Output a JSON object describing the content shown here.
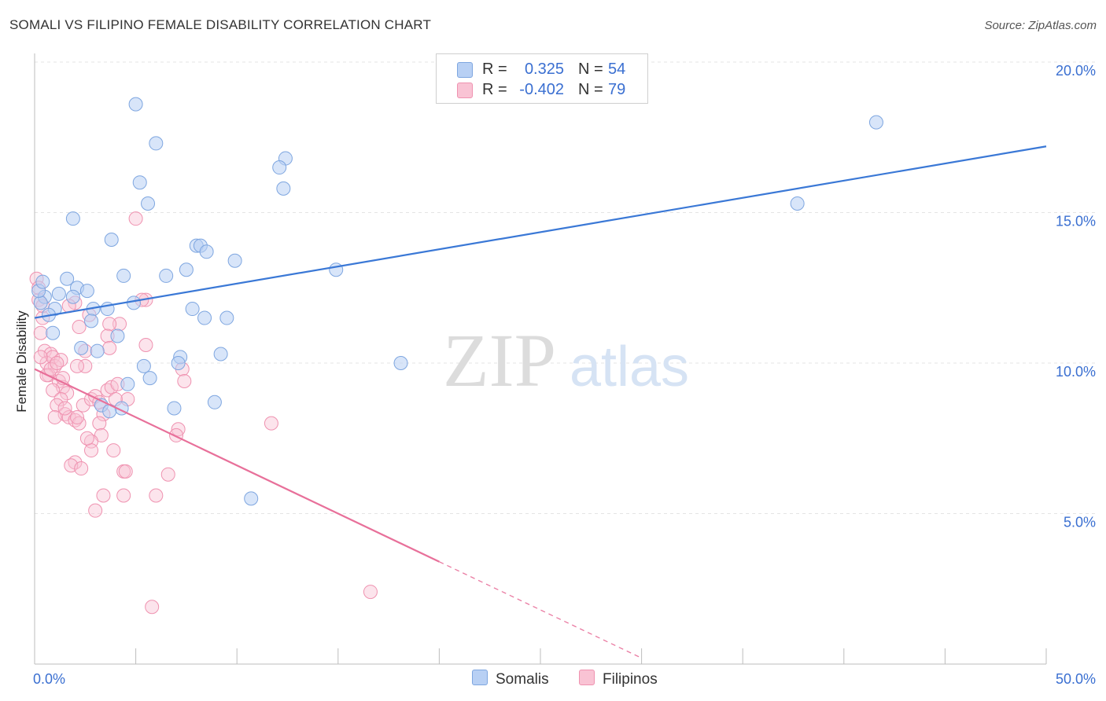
{
  "title": "SOMALI VS FILIPINO FEMALE DISABILITY CORRELATION CHART",
  "source": "Source: ZipAtlas.com",
  "watermark": {
    "zip": "ZIP",
    "atlas": "atlas"
  },
  "legend": {
    "r_label": "R =",
    "n_label": "N =",
    "rows": [
      {
        "r": "0.325",
        "n": "54",
        "fill": "#b8d0f4",
        "stroke": "#7ea6e0"
      },
      {
        "r": "-0.402",
        "n": "79",
        "fill": "#f9c3d4",
        "stroke": "#ef92b0"
      }
    ]
  },
  "bottom_legend": {
    "somalis": "Somalis",
    "filipinos": "Filipinos"
  },
  "chart_data": {
    "type": "scatter",
    "xlabel": "",
    "ylabel": "Female Disability",
    "xlim": [
      0,
      50
    ],
    "ylim": [
      0,
      20
    ],
    "x_tick_labels": [
      {
        "value": 0,
        "label": "0.0%"
      },
      {
        "value": 50,
        "label": "50.0%"
      }
    ],
    "y_tick_labels": [
      {
        "value": 5,
        "label": "5.0%"
      },
      {
        "value": 10,
        "label": "10.0%"
      },
      {
        "value": 15,
        "label": "15.0%"
      },
      {
        "value": 20,
        "label": "20.0%"
      }
    ],
    "y_gridlines": [
      5,
      10,
      15,
      20
    ],
    "colors": {
      "somalis": "#3a78d6",
      "filipinos": "#e8709a",
      "tick_label": "#3a6fd1"
    },
    "series": [
      {
        "name": "Somalis",
        "r": 0.325,
        "n": 54,
        "trend": {
          "x0": 0,
          "y0": 11.5,
          "x1": 50,
          "y1": 17.2
        },
        "points": [
          [
            5.0,
            18.6
          ],
          [
            6.0,
            17.3
          ],
          [
            5.2,
            16.0
          ],
          [
            5.6,
            15.3
          ],
          [
            1.9,
            14.8
          ],
          [
            3.8,
            14.1
          ],
          [
            8.0,
            13.9
          ],
          [
            8.2,
            13.9
          ],
          [
            8.5,
            13.7
          ],
          [
            9.9,
            13.4
          ],
          [
            7.5,
            13.1
          ],
          [
            4.4,
            12.9
          ],
          [
            6.5,
            12.9
          ],
          [
            1.6,
            12.8
          ],
          [
            2.1,
            12.5
          ],
          [
            2.6,
            12.4
          ],
          [
            1.2,
            12.3
          ],
          [
            0.5,
            12.2
          ],
          [
            1.9,
            12.2
          ],
          [
            0.3,
            12.0
          ],
          [
            4.9,
            12.0
          ],
          [
            1.0,
            11.8
          ],
          [
            2.9,
            11.8
          ],
          [
            3.6,
            11.8
          ],
          [
            7.8,
            11.8
          ],
          [
            0.7,
            11.6
          ],
          [
            8.4,
            11.5
          ],
          [
            9.5,
            11.5
          ],
          [
            2.8,
            11.4
          ],
          [
            0.9,
            11.0
          ],
          [
            4.1,
            10.9
          ],
          [
            2.3,
            10.5
          ],
          [
            3.1,
            10.4
          ],
          [
            9.2,
            10.3
          ],
          [
            7.2,
            10.2
          ],
          [
            7.1,
            10.0
          ],
          [
            5.4,
            9.9
          ],
          [
            5.7,
            9.5
          ],
          [
            4.6,
            9.3
          ],
          [
            3.3,
            8.6
          ],
          [
            4.3,
            8.5
          ],
          [
            6.9,
            8.5
          ],
          [
            8.9,
            8.7
          ],
          [
            3.7,
            8.4
          ],
          [
            10.7,
            5.5
          ],
          [
            12.4,
            16.8
          ],
          [
            12.1,
            16.5
          ],
          [
            12.3,
            15.8
          ],
          [
            14.9,
            13.1
          ],
          [
            18.1,
            10.0
          ],
          [
            41.6,
            18.0
          ],
          [
            37.7,
            15.3
          ],
          [
            0.2,
            12.4
          ],
          [
            0.4,
            12.7
          ]
        ]
      },
      {
        "name": "Filipinos",
        "r": -0.402,
        "n": 79,
        "trend": {
          "x0": 0,
          "y0": 9.8,
          "x1": 20,
          "y1": 3.4
        },
        "trend_dashed_to": {
          "x": 30,
          "y": 0.2
        },
        "points": [
          [
            0.1,
            12.8
          ],
          [
            0.2,
            12.1
          ],
          [
            0.4,
            11.5
          ],
          [
            0.3,
            11.0
          ],
          [
            0.5,
            10.4
          ],
          [
            0.8,
            10.3
          ],
          [
            0.6,
            10.0
          ],
          [
            0.9,
            10.2
          ],
          [
            1.0,
            9.9
          ],
          [
            0.7,
            9.6
          ],
          [
            1.2,
            9.4
          ],
          [
            1.4,
            9.2
          ],
          [
            0.9,
            9.1
          ],
          [
            1.6,
            9.0
          ],
          [
            1.3,
            8.8
          ],
          [
            1.1,
            8.6
          ],
          [
            1.5,
            8.3
          ],
          [
            1.7,
            8.2
          ],
          [
            1.0,
            8.2
          ],
          [
            2.0,
            8.1
          ],
          [
            2.2,
            8.0
          ],
          [
            2.5,
            9.9
          ],
          [
            2.1,
            9.9
          ],
          [
            2.4,
            8.6
          ],
          [
            2.8,
            8.8
          ],
          [
            3.0,
            8.9
          ],
          [
            3.2,
            8.7
          ],
          [
            3.4,
            8.3
          ],
          [
            3.6,
            9.1
          ],
          [
            3.8,
            9.2
          ],
          [
            4.1,
            9.3
          ],
          [
            4.6,
            8.8
          ],
          [
            3.2,
            8.0
          ],
          [
            3.3,
            7.6
          ],
          [
            2.8,
            7.4
          ],
          [
            2.8,
            7.1
          ],
          [
            3.9,
            7.1
          ],
          [
            2.0,
            6.7
          ],
          [
            1.8,
            6.6
          ],
          [
            2.3,
            6.5
          ],
          [
            4.4,
            6.4
          ],
          [
            4.5,
            6.4
          ],
          [
            6.6,
            6.3
          ],
          [
            3.4,
            5.6
          ],
          [
            4.4,
            5.6
          ],
          [
            6.0,
            5.6
          ],
          [
            3.0,
            5.1
          ],
          [
            2.0,
            12.0
          ],
          [
            1.7,
            11.9
          ],
          [
            2.7,
            11.6
          ],
          [
            4.2,
            11.3
          ],
          [
            3.7,
            11.3
          ],
          [
            2.2,
            11.2
          ],
          [
            3.6,
            10.9
          ],
          [
            5.5,
            12.1
          ],
          [
            5.3,
            12.1
          ],
          [
            5.5,
            10.6
          ],
          [
            5.0,
            14.8
          ],
          [
            7.3,
            9.8
          ],
          [
            7.4,
            9.4
          ],
          [
            7.1,
            7.8
          ],
          [
            7.0,
            7.6
          ],
          [
            11.7,
            8.0
          ],
          [
            2.5,
            10.4
          ],
          [
            3.7,
            10.5
          ],
          [
            1.3,
            10.1
          ],
          [
            0.6,
            9.6
          ],
          [
            0.8,
            9.8
          ],
          [
            1.4,
            9.5
          ],
          [
            2.1,
            8.2
          ],
          [
            2.6,
            7.5
          ],
          [
            1.5,
            8.5
          ],
          [
            4.0,
            8.8
          ],
          [
            5.8,
            1.9
          ],
          [
            16.6,
            2.4
          ],
          [
            0.2,
            12.5
          ],
          [
            0.4,
            11.9
          ],
          [
            1.1,
            10.0
          ],
          [
            0.3,
            10.2
          ]
        ]
      }
    ]
  }
}
